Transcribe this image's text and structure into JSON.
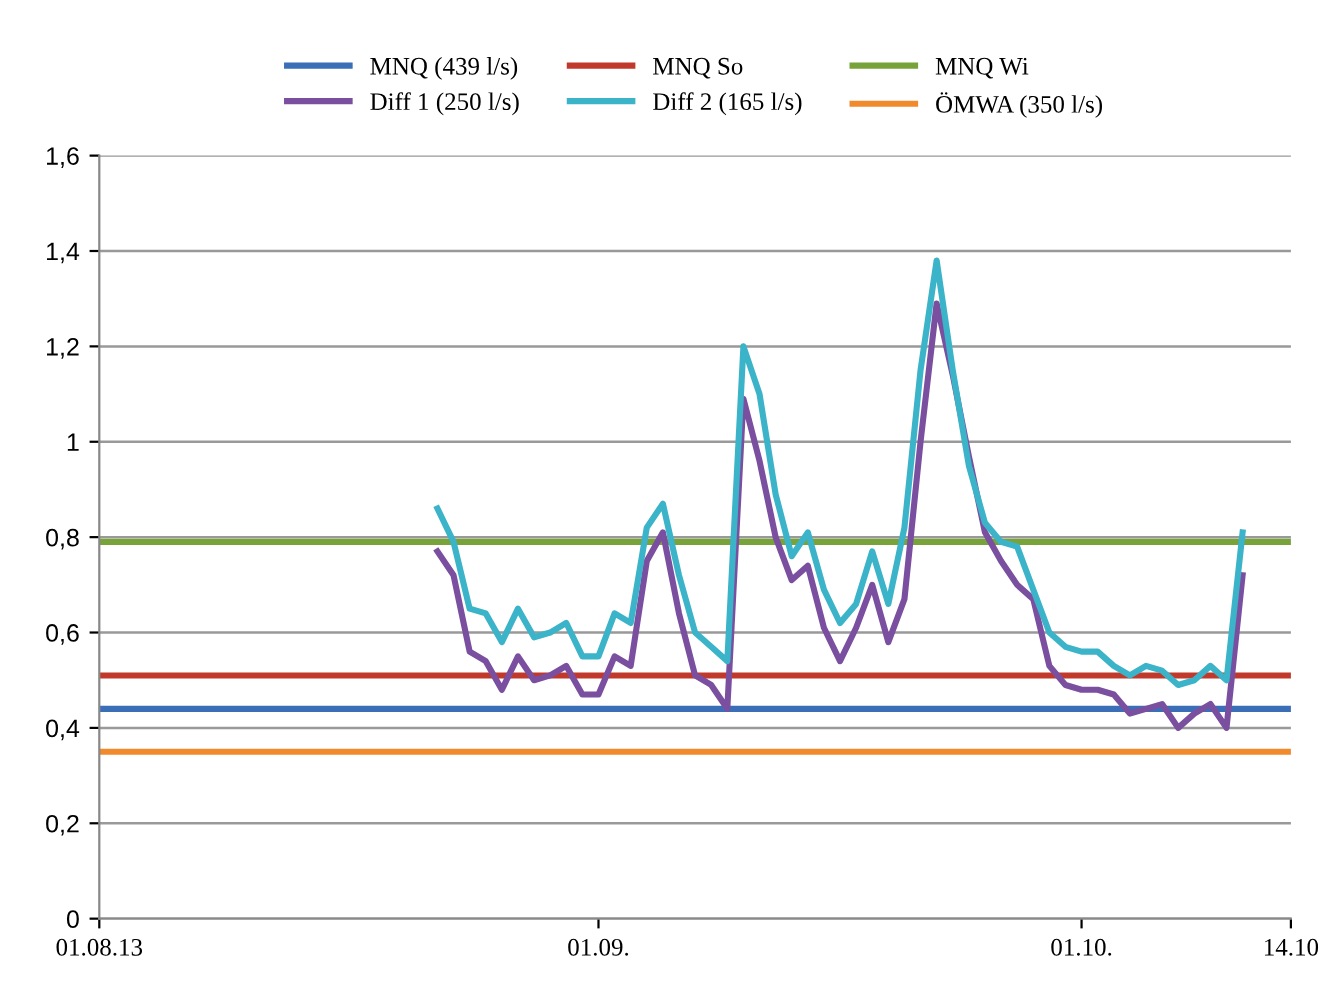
{
  "chart_data": {
    "type": "line",
    "xlim": [
      "2013-08-01",
      "2013-10-14"
    ],
    "xticks": [
      {
        "value": "2013-08-01",
        "label": "01.08.13"
      },
      {
        "value": "2013-09-01",
        "label": "01.09."
      },
      {
        "value": "2013-10-01",
        "label": "01.10."
      },
      {
        "value": "2013-10-14",
        "label": "14.10"
      }
    ],
    "ylim": [
      0,
      1.6
    ],
    "yticks": [
      0,
      {
        "value": 0.2,
        "label": "0,2"
      },
      {
        "value": 0.4,
        "label": "0,4"
      },
      {
        "value": 0.6,
        "label": "0,6"
      },
      {
        "value": 0.8,
        "label": "0,8"
      },
      1,
      {
        "value": 1.2,
        "label": "1,2"
      },
      {
        "value": 1.4,
        "label": "1,4"
      },
      {
        "value": 1.6,
        "label": "1,6"
      }
    ],
    "grid": "y",
    "legend": "top",
    "marker": "none",
    "line_style": "solid",
    "series": [
      {
        "name": "MNQ (439 l/s)",
        "color": "#3a6fb8",
        "x": [
          "2013-08-01",
          "2013-10-14"
        ],
        "values": [
          0.44,
          0.44
        ]
      },
      {
        "name": "MNQ So",
        "color": "#c0392b",
        "x": [
          "2013-08-01",
          "2013-10-14"
        ],
        "values": [
          0.51,
          0.51
        ]
      },
      {
        "name": "MNQ Wi",
        "color": "#77a33a",
        "x": [
          "2013-08-01",
          "2013-10-14"
        ],
        "values": [
          0.79,
          0.79
        ]
      },
      {
        "name": "Diff 1 (250 l/s)",
        "color": "#7b4fa0",
        "x": [
          "2013-08-22",
          "2013-08-23",
          "2013-08-24",
          "2013-08-25",
          "2013-08-26",
          "2013-08-27",
          "2013-08-28",
          "2013-08-29",
          "2013-08-30",
          "2013-08-31",
          "2013-09-01",
          "2013-09-02",
          "2013-09-03",
          "2013-09-04",
          "2013-09-05",
          "2013-09-06",
          "2013-09-07",
          "2013-09-08",
          "2013-09-09",
          "2013-09-10",
          "2013-09-11",
          "2013-09-12",
          "2013-09-13",
          "2013-09-14",
          "2013-09-15",
          "2013-09-16",
          "2013-09-17",
          "2013-09-18",
          "2013-09-19",
          "2013-09-20",
          "2013-09-21",
          "2013-09-22",
          "2013-09-23",
          "2013-09-24",
          "2013-09-25",
          "2013-09-26",
          "2013-09-27",
          "2013-09-28",
          "2013-09-29",
          "2013-09-30",
          "2013-10-01",
          "2013-10-02",
          "2013-10-03",
          "2013-10-04",
          "2013-10-05",
          "2013-10-06",
          "2013-10-07",
          "2013-10-08",
          "2013-10-09",
          "2013-10-10",
          "2013-10-11"
        ],
        "values": [
          0.77,
          0.72,
          0.56,
          0.54,
          0.48,
          0.55,
          0.5,
          0.51,
          0.53,
          0.47,
          0.47,
          0.55,
          0.53,
          0.75,
          0.81,
          0.64,
          0.51,
          0.49,
          0.44,
          1.09,
          0.96,
          0.8,
          0.71,
          0.74,
          0.61,
          0.54,
          0.61,
          0.7,
          0.58,
          0.67,
          1.0,
          1.29,
          1.14,
          0.97,
          0.81,
          0.75,
          0.7,
          0.67,
          0.53,
          0.49,
          0.48,
          0.48,
          0.47,
          0.43,
          0.44,
          0.45,
          0.4,
          0.43,
          0.45,
          0.4,
          0.72
        ]
      },
      {
        "name": "Diff 2 (165 l/s)",
        "color": "#3bb3c8",
        "x": [
          "2013-08-22",
          "2013-08-23",
          "2013-08-24",
          "2013-08-25",
          "2013-08-26",
          "2013-08-27",
          "2013-08-28",
          "2013-08-29",
          "2013-08-30",
          "2013-08-31",
          "2013-09-01",
          "2013-09-02",
          "2013-09-03",
          "2013-09-04",
          "2013-09-05",
          "2013-09-06",
          "2013-09-07",
          "2013-09-08",
          "2013-09-09",
          "2013-09-10",
          "2013-09-11",
          "2013-09-12",
          "2013-09-13",
          "2013-09-14",
          "2013-09-15",
          "2013-09-16",
          "2013-09-17",
          "2013-09-18",
          "2013-09-19",
          "2013-09-20",
          "2013-09-21",
          "2013-09-22",
          "2013-09-23",
          "2013-09-24",
          "2013-09-25",
          "2013-09-26",
          "2013-09-27",
          "2013-09-28",
          "2013-09-29",
          "2013-09-30",
          "2013-10-01",
          "2013-10-02",
          "2013-10-03",
          "2013-10-04",
          "2013-10-05",
          "2013-10-06",
          "2013-10-07",
          "2013-10-08",
          "2013-10-09",
          "2013-10-10",
          "2013-10-11"
        ],
        "values": [
          0.86,
          0.79,
          0.65,
          0.64,
          0.58,
          0.65,
          0.59,
          0.6,
          0.62,
          0.55,
          0.55,
          0.64,
          0.62,
          0.82,
          0.87,
          0.72,
          0.6,
          0.57,
          0.54,
          1.2,
          1.1,
          0.89,
          0.76,
          0.81,
          0.69,
          0.62,
          0.66,
          0.77,
          0.66,
          0.82,
          1.15,
          1.38,
          1.15,
          0.95,
          0.83,
          0.79,
          0.78,
          0.69,
          0.6,
          0.57,
          0.56,
          0.56,
          0.53,
          0.51,
          0.53,
          0.52,
          0.49,
          0.5,
          0.53,
          0.5,
          0.81
        ]
      },
      {
        "name": "ÖMWA (350 l/s)",
        "color": "#f08a2c",
        "x": [
          "2013-08-01",
          "2013-10-14"
        ],
        "values": [
          0.35,
          0.35
        ]
      }
    ]
  }
}
